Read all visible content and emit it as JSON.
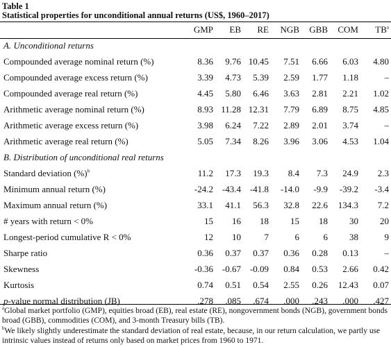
{
  "table_label": "Table 1",
  "title": "Statistical properties for unconditional annual returns (US$, 1960–2017)",
  "columns": [
    "GMP",
    "EB",
    "RE",
    "NGB",
    "GBB",
    "COM",
    "TB"
  ],
  "last_col_superscript": "a",
  "section_a": "A. Unconditional returns",
  "section_b": "B. Distribution of unconditional real returns",
  "rows_a": [
    {
      "label": "Compounded average nominal return (%)",
      "values": [
        "8.36",
        "9.76",
        "10.45",
        "7.51",
        "6.66",
        "6.03",
        "4.80"
      ]
    },
    {
      "label": "Compounded average excess return (%)",
      "values": [
        "3.39",
        "4.73",
        "5.39",
        "2.59",
        "1.77",
        "1.18",
        "–"
      ]
    },
    {
      "label": "Compounded average real return (%)",
      "values": [
        "4.45",
        "5.80",
        "6.46",
        "3.63",
        "2.81",
        "2.21",
        "1.02"
      ]
    },
    {
      "label": "Arithmetic average nominal return (%)",
      "values": [
        "8.93",
        "11.28",
        "12.31",
        "7.79",
        "6.89",
        "8.75",
        "4.85"
      ]
    },
    {
      "label": "Arithmetic average excess return (%)",
      "values": [
        "3.98",
        "6.24",
        "7.22",
        "2.89",
        "2.01",
        "3.74",
        "–"
      ]
    },
    {
      "label": "Arithmetic average real return (%)",
      "values": [
        "5.05",
        "7.34",
        "8.26",
        "3.96",
        "3.06",
        "4.53",
        "1.04"
      ]
    }
  ],
  "rows_b": [
    {
      "label": "Standard deviation (%)",
      "sup": "b",
      "values": [
        "11.2",
        "17.3",
        "19.3",
        "8.4",
        "7.3",
        "24.9",
        "2.3"
      ]
    },
    {
      "label": "Minimum annual return (%)",
      "values": [
        "-24.2",
        "-43.4",
        "-41.8",
        "-14.0",
        "-9.9",
        "-39.2",
        "-3.4"
      ]
    },
    {
      "label": "Maximum annual return (%)",
      "values": [
        "33.1",
        "41.1",
        "56.3",
        "32.8",
        "22.6",
        "134.3",
        "7.2"
      ]
    },
    {
      "label": "# years with return < 0%",
      "values": [
        "15",
        "16",
        "18",
        "15",
        "18",
        "30",
        "20"
      ]
    },
    {
      "label": "Longest-period cumulative R < 0%",
      "values": [
        "12",
        "10",
        "7",
        "6",
        "6",
        "38",
        "9"
      ]
    },
    {
      "label": "Sharpe ratio",
      "values": [
        "0.36",
        "0.37",
        "0.37",
        "0.36",
        "0.28",
        "0.13",
        "–"
      ]
    },
    {
      "label": "Skewness",
      "values": [
        "-0.36",
        "-0.67",
        "-0.09",
        "0.84",
        "0.53",
        "2.66",
        "0.42"
      ]
    },
    {
      "label": "Kurtosis",
      "values": [
        "0.74",
        "0.51",
        "0.54",
        "2.55",
        "0.26",
        "12.43",
        "0.07"
      ]
    },
    {
      "label_prefix_italic": "p",
      "label": "-value normal distribution (JB)",
      "values": [
        ".278",
        ".085",
        ".674",
        ".000",
        ".243",
        ".000",
        ".427"
      ]
    }
  ],
  "footnotes": {
    "a_mark": "a",
    "a_text": "Global market portfolio (GMP), equities broad (EB), real estate (RE), nongovernment bonds (NGB), government bonds broad (GBB), commodities (COM), and 3-month Treasury bills (TB).",
    "b_mark": "b",
    "b_text": "We likely slightly underestimate the standard deviation of real estate, because, in our return calculation, we partly use intrinsic values instead of returns only based on market prices from 1960 to 1971."
  }
}
